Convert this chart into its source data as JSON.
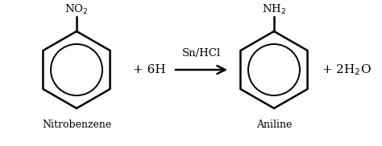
{
  "bg_color": "#ffffff",
  "text_color": "#000000",
  "fig_width": 4.74,
  "fig_height": 1.82,
  "dpi": 100,
  "label_nitrobenzene": "Nitrobenzene",
  "label_aniline": "Aniline",
  "label_no2": "NO$_2$",
  "label_nh2": "NH$_2$",
  "label_plus1": "+ 6H",
  "label_catalyst": "Sn/HCl",
  "label_plus2": "+ 2H$_2$O"
}
